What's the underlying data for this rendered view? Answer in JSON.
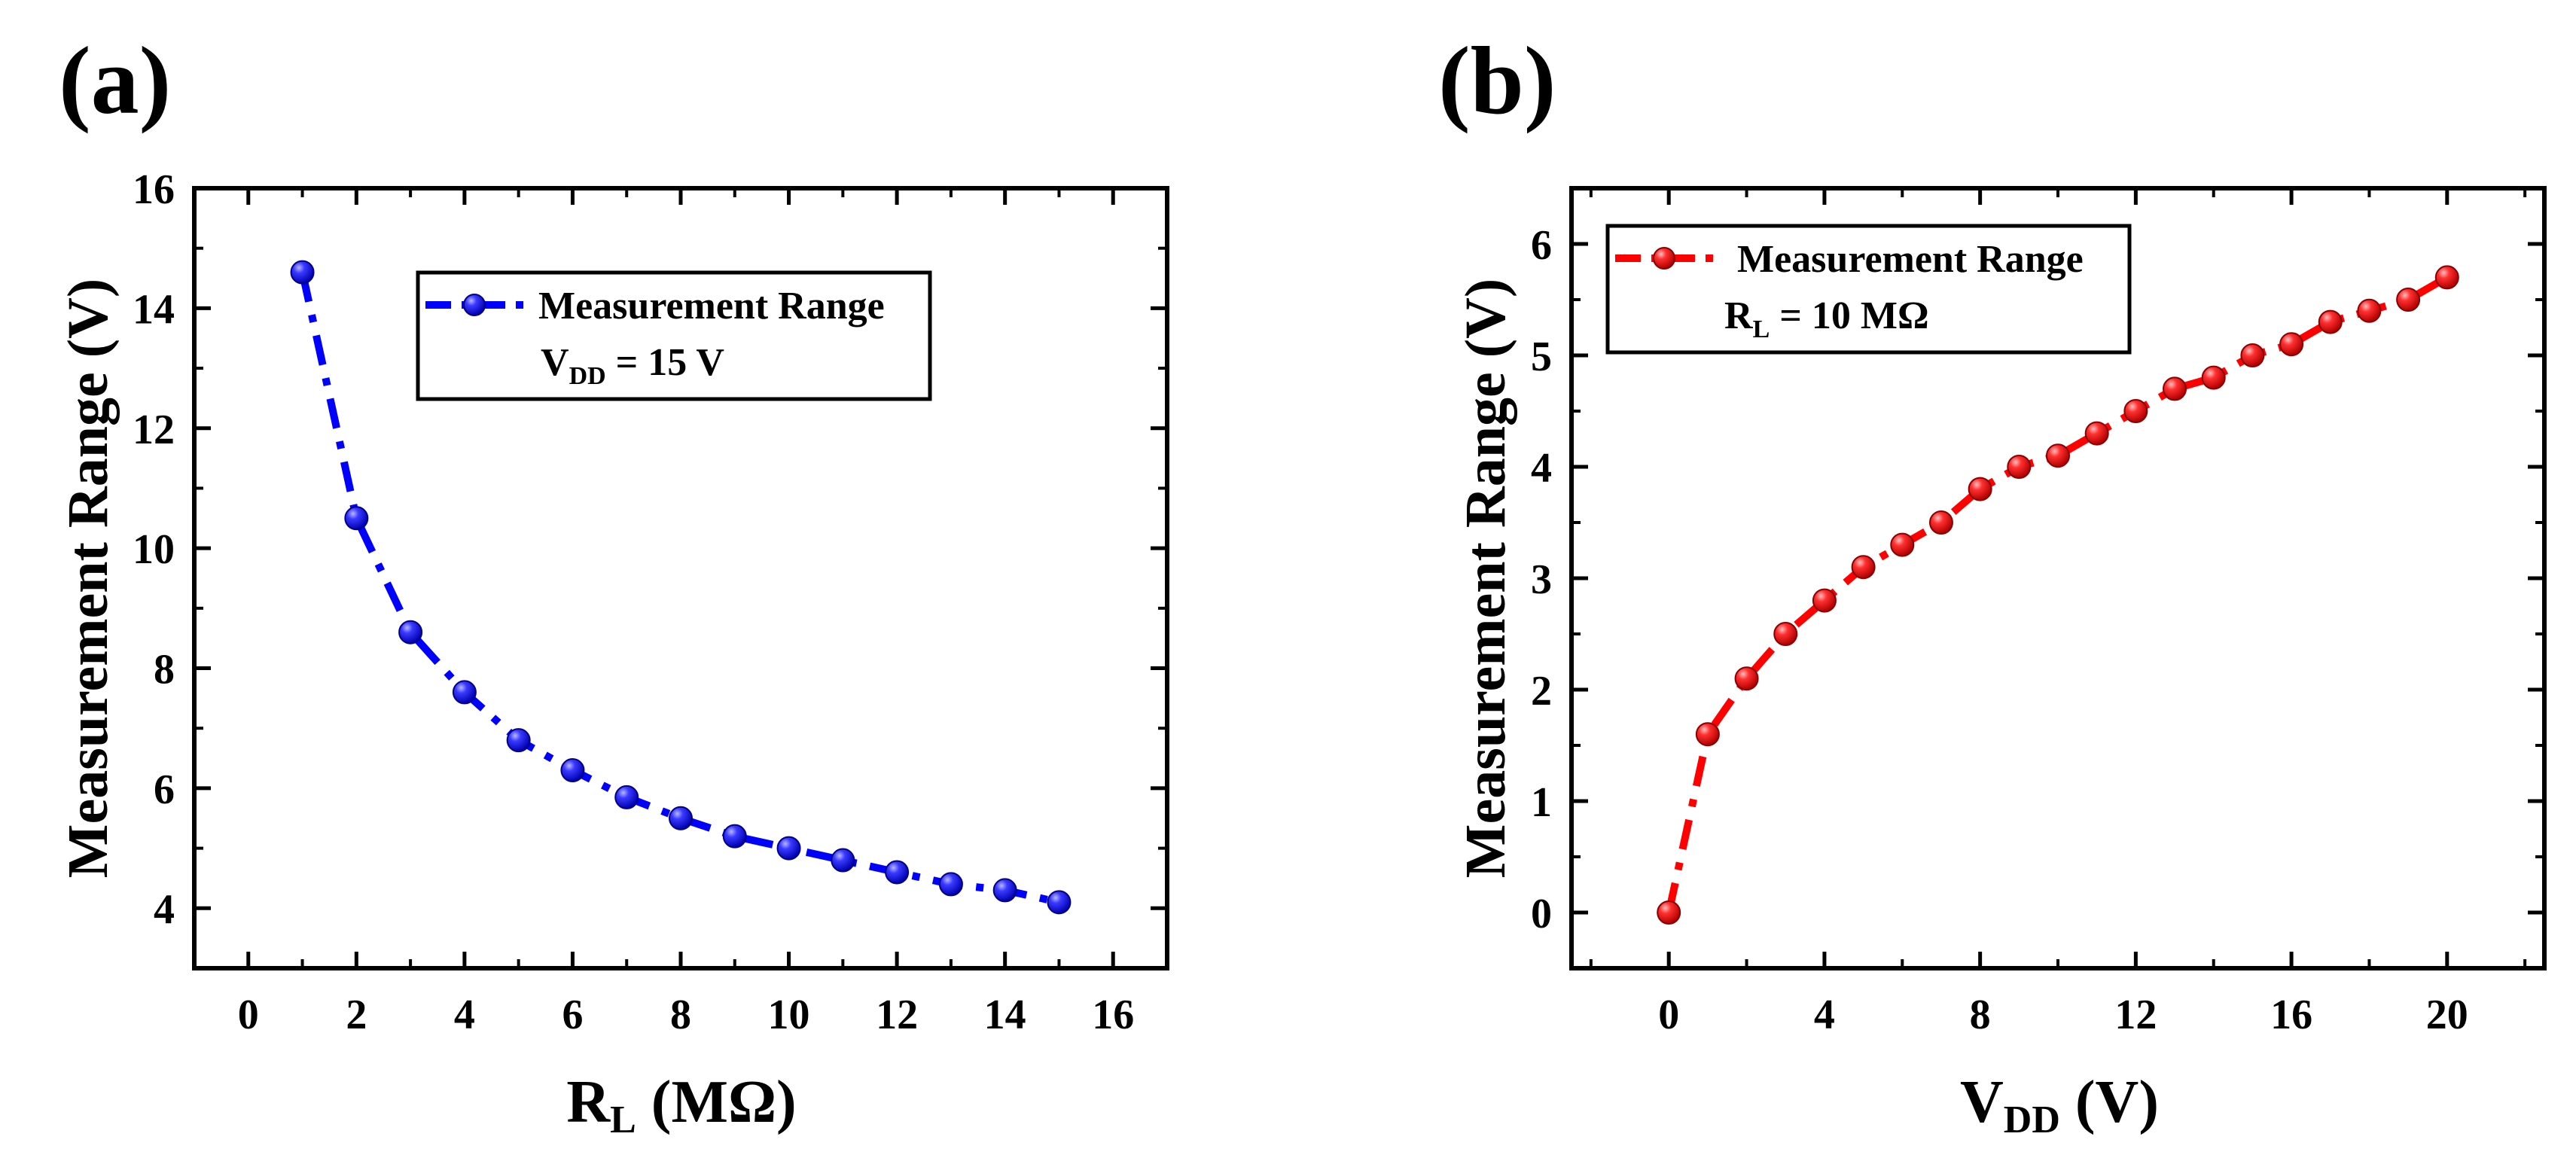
{
  "chart_data": [
    {
      "panel_label": "(a)",
      "type": "line",
      "line_style": "dash-dot",
      "color": "#0000ff",
      "xlabel": {
        "main": "R",
        "sub": "L",
        "unit": " (MΩ)"
      },
      "ylabel": "Measurement Range (V)",
      "xlim": [
        -1,
        17
      ],
      "ylim": [
        3,
        16
      ],
      "xticks": [
        "0",
        "2",
        "4",
        "6",
        "8",
        "10",
        "12",
        "14",
        "16"
      ],
      "yticks": [
        "4",
        "6",
        "8",
        "10",
        "12",
        "14",
        "16"
      ],
      "legend": {
        "position": "top-center",
        "entry": "Measurement Range",
        "condition": {
          "main": "V",
          "sub": "DD",
          "rest": " = 15 V"
        }
      },
      "series": [
        {
          "name": "Measurement Range",
          "x": [
            1,
            2,
            3,
            4,
            5,
            6,
            7,
            8,
            9,
            10,
            11,
            12,
            13,
            14,
            15
          ],
          "values": [
            14.6,
            10.5,
            8.6,
            7.6,
            6.8,
            6.3,
            5.85,
            5.5,
            5.2,
            5.0,
            4.8,
            4.6,
            4.4,
            4.3,
            4.1
          ]
        }
      ]
    },
    {
      "panel_label": "(b)",
      "type": "line",
      "line_style": "dash-dot",
      "color": "#ff0000",
      "xlabel": {
        "main": "V",
        "sub": "DD",
        "unit": " (V)"
      },
      "ylabel": "Measurement Range (V)",
      "xlim": [
        -2.5,
        22.5
      ],
      "ylim": [
        -0.5,
        6.5
      ],
      "xticks": [
        "0",
        "4",
        "8",
        "12",
        "16",
        "20"
      ],
      "yticks": [
        "0",
        "1",
        "2",
        "3",
        "4",
        "5",
        "6"
      ],
      "legend": {
        "position": "top-left",
        "entry": "Measurement Range",
        "condition": {
          "main": "R",
          "sub": "L",
          "rest": " = 10 MΩ"
        }
      },
      "series": [
        {
          "name": "Measurement Range",
          "x": [
            0,
            1,
            2,
            3,
            4,
            5,
            6,
            7,
            8,
            9,
            10,
            11,
            12,
            13,
            14,
            15,
            16,
            17,
            18,
            19,
            20
          ],
          "values": [
            0,
            1.6,
            2.1,
            2.5,
            2.8,
            3.1,
            3.3,
            3.5,
            3.8,
            4.0,
            4.1,
            4.3,
            4.5,
            4.7,
            4.8,
            5.0,
            5.1,
            5.3,
            5.4,
            5.5,
            5.7
          ]
        }
      ]
    }
  ]
}
